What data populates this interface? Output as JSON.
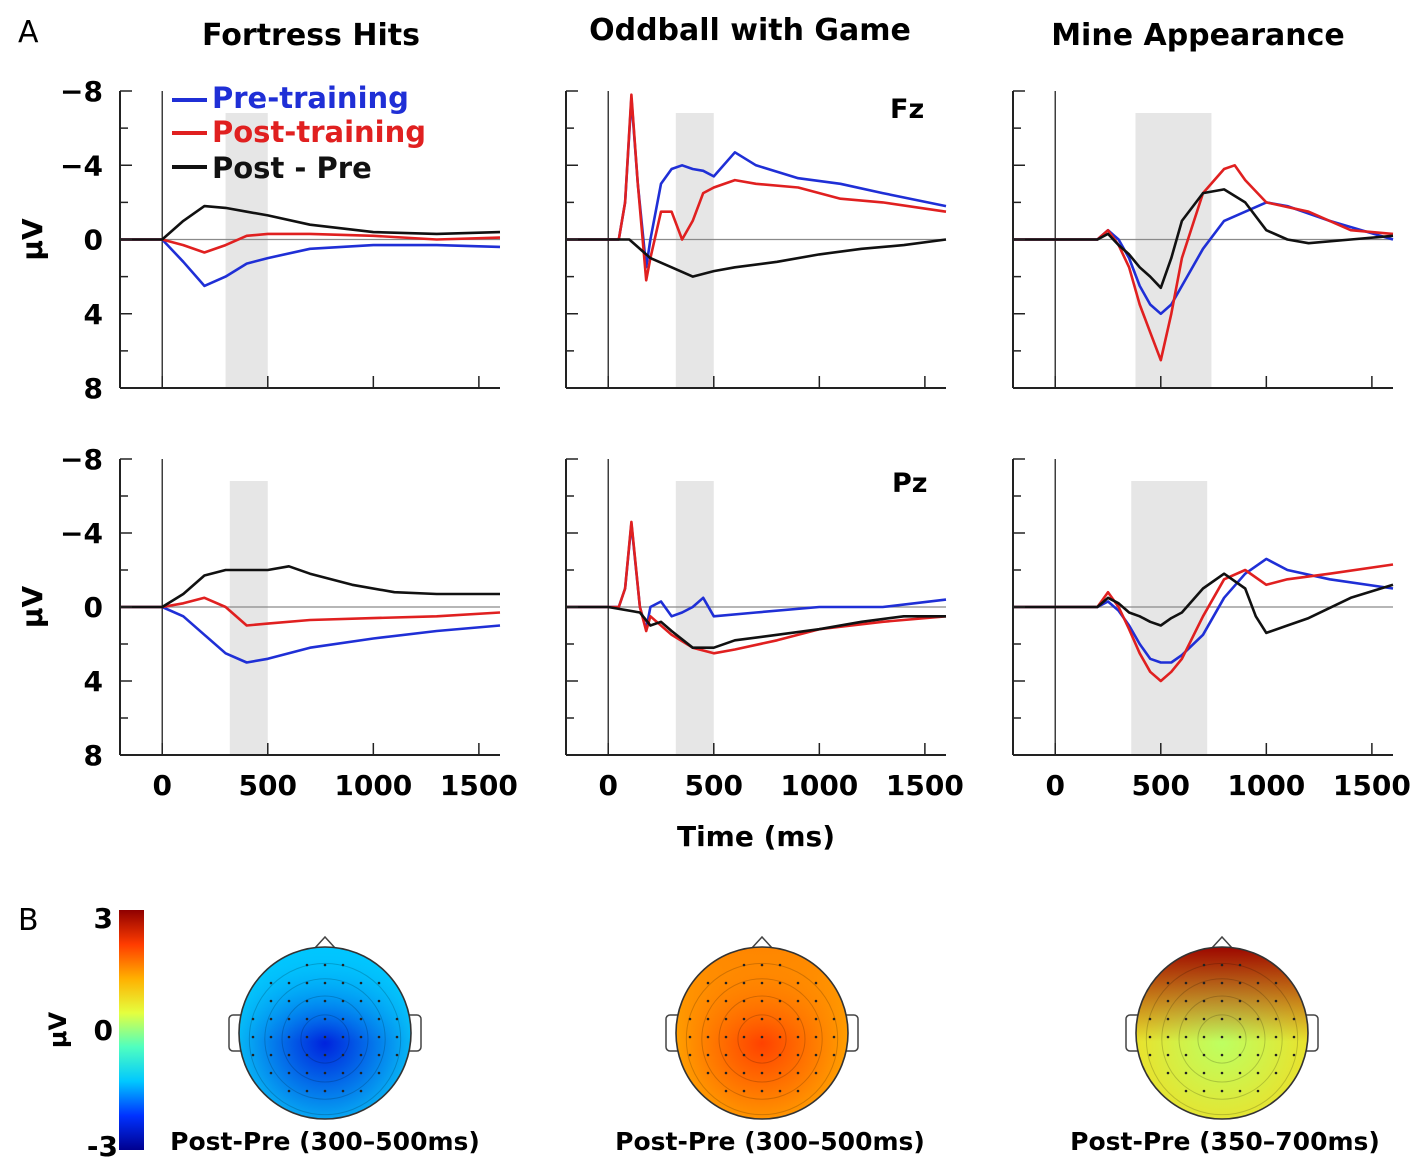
{
  "panel_letters": {
    "a": "A",
    "b": "B"
  },
  "legend": [
    {
      "key": "pre",
      "label": "Pre-training",
      "color": "#1f2fd6"
    },
    {
      "key": "post",
      "label": "Post-training",
      "color": "#e02020"
    },
    {
      "key": "diff",
      "label": "Post - Pre",
      "color": "#111111"
    }
  ],
  "channel_labels": {
    "fz": "Fz",
    "pz": "Pz"
  },
  "shade_color": "#e6e6e6",
  "chart_data": [
    {
      "type": "line",
      "id": "fortress-fz",
      "title": "Fortress Hits",
      "channel": "Fz",
      "ylabel": "μV",
      "xlabel": "",
      "xlim": [
        -200,
        1600
      ],
      "ylim": [
        8,
        -8
      ],
      "y_inverted": true,
      "xticks": [
        0,
        500,
        1000,
        1500
      ],
      "yticks": [
        -8,
        -4,
        0,
        4,
        8
      ],
      "shade": [
        300,
        500
      ],
      "grid": false,
      "series": [
        {
          "name": "Pre-training",
          "x": [
            -200,
            0,
            100,
            200,
            300,
            400,
            500,
            700,
            1000,
            1300,
            1600
          ],
          "y": [
            0,
            0,
            1.2,
            2.5,
            2,
            1.3,
            1,
            0.5,
            0.3,
            0.3,
            0.4
          ]
        },
        {
          "name": "Post-training",
          "x": [
            -200,
            0,
            100,
            200,
            300,
            400,
            500,
            700,
            1000,
            1300,
            1600
          ],
          "y": [
            0,
            0,
            0.3,
            0.7,
            0.3,
            -0.2,
            -0.3,
            -0.3,
            -0.2,
            0,
            -0.1
          ]
        },
        {
          "name": "Post - Pre",
          "x": [
            -200,
            0,
            100,
            200,
            300,
            400,
            500,
            700,
            1000,
            1300,
            1600
          ],
          "y": [
            0,
            0,
            -1,
            -1.8,
            -1.7,
            -1.5,
            -1.3,
            -0.8,
            -0.4,
            -0.3,
            -0.4
          ]
        }
      ]
    },
    {
      "type": "line",
      "id": "oddball-fz",
      "title": "Oddball with Game",
      "channel": "Fz",
      "ylabel": "",
      "xlabel": "",
      "xlim": [
        -200,
        1600
      ],
      "ylim": [
        8,
        -8
      ],
      "y_inverted": true,
      "xticks": [
        0,
        500,
        1000,
        1500
      ],
      "yticks": [
        -8,
        -4,
        0,
        4,
        8
      ],
      "shade": [
        320,
        500
      ],
      "grid": false,
      "series": [
        {
          "name": "Pre-training",
          "x": [
            -200,
            0,
            50,
            80,
            110,
            140,
            180,
            200,
            250,
            300,
            350,
            400,
            450,
            500,
            600,
            700,
            900,
            1100,
            1300,
            1600
          ],
          "y": [
            0,
            0,
            0,
            -2,
            -7.6,
            -3,
            1.5,
            0,
            -3,
            -3.8,
            -4,
            -3.8,
            -3.7,
            -3.4,
            -4.7,
            -4,
            -3.3,
            -3,
            -2.5,
            -1.8
          ]
        },
        {
          "name": "Post-training",
          "x": [
            -200,
            0,
            50,
            80,
            110,
            140,
            180,
            200,
            250,
            300,
            350,
            400,
            450,
            500,
            600,
            700,
            900,
            1100,
            1300,
            1600
          ],
          "y": [
            0,
            0,
            0,
            -2,
            -7.8,
            -3,
            2.2,
            1,
            -1.5,
            -1.5,
            0,
            -1,
            -2.5,
            -2.8,
            -3.2,
            -3,
            -2.8,
            -2.2,
            -2,
            -1.5
          ]
        },
        {
          "name": "Post - Pre",
          "x": [
            -200,
            0,
            100,
            180,
            200,
            300,
            400,
            500,
            600,
            800,
            1000,
            1200,
            1400,
            1600
          ],
          "y": [
            0,
            0,
            0,
            0.8,
            1,
            1.5,
            2,
            1.7,
            1.5,
            1.2,
            0.8,
            0.5,
            0.3,
            0
          ]
        }
      ]
    },
    {
      "type": "line",
      "id": "mine-fz",
      "title": "Mine Appearance",
      "channel": "Fz",
      "ylabel": "",
      "xlabel": "",
      "xlim": [
        -200,
        1600
      ],
      "ylim": [
        8,
        -8
      ],
      "y_inverted": true,
      "xticks": [
        0,
        500,
        1000,
        1500
      ],
      "yticks": [
        -8,
        -4,
        0,
        4,
        8
      ],
      "shade": [
        380,
        740
      ],
      "grid": false,
      "series": [
        {
          "name": "Pre-training",
          "x": [
            -200,
            0,
            200,
            250,
            300,
            350,
            400,
            450,
            500,
            550,
            600,
            700,
            800,
            900,
            1000,
            1100,
            1300,
            1600
          ],
          "y": [
            0,
            0,
            0,
            -0.5,
            0,
            1,
            2.5,
            3.5,
            4,
            3.5,
            2.5,
            0.5,
            -1,
            -1.5,
            -2,
            -1.8,
            -1,
            0
          ]
        },
        {
          "name": "Post-training",
          "x": [
            -200,
            0,
            200,
            250,
            300,
            350,
            400,
            450,
            500,
            550,
            600,
            700,
            800,
            850,
            900,
            1000,
            1200,
            1400,
            1600
          ],
          "y": [
            0,
            0,
            0,
            -0.5,
            0.3,
            1.5,
            3.5,
            5,
            6.5,
            4,
            1,
            -2.5,
            -3.8,
            -4,
            -3.2,
            -2,
            -1.5,
            -0.5,
            -0.3
          ]
        },
        {
          "name": "Post - Pre",
          "x": [
            -200,
            0,
            200,
            250,
            300,
            350,
            400,
            450,
            500,
            550,
            600,
            700,
            800,
            900,
            1000,
            1100,
            1200,
            1400,
            1600
          ],
          "y": [
            0,
            0,
            0,
            -0.3,
            0.3,
            0.8,
            1.5,
            2,
            2.6,
            1,
            -1,
            -2.5,
            -2.7,
            -2,
            -0.5,
            0,
            0.2,
            0,
            -0.2
          ]
        }
      ]
    },
    {
      "type": "line",
      "id": "fortress-pz",
      "title": "",
      "channel": "Pz",
      "ylabel": "μV",
      "xlabel": "",
      "xlim": [
        -200,
        1600
      ],
      "ylim": [
        8,
        -8
      ],
      "y_inverted": true,
      "xticks": [
        0,
        500,
        1000,
        1500
      ],
      "yticks": [
        -8,
        -4,
        0,
        4,
        8
      ],
      "shade": [
        320,
        500
      ],
      "grid": false,
      "series": [
        {
          "name": "Pre-training",
          "x": [
            -200,
            0,
            100,
            200,
            300,
            400,
            500,
            700,
            1000,
            1300,
            1600
          ],
          "y": [
            0,
            0,
            0.5,
            1.5,
            2.5,
            3,
            2.8,
            2.2,
            1.7,
            1.3,
            1
          ]
        },
        {
          "name": "Post-training",
          "x": [
            -200,
            0,
            100,
            200,
            300,
            400,
            500,
            700,
            1000,
            1300,
            1600
          ],
          "y": [
            0,
            0,
            -0.2,
            -0.5,
            0,
            1,
            0.9,
            0.7,
            0.6,
            0.5,
            0.3
          ]
        },
        {
          "name": "Post - Pre",
          "x": [
            -200,
            0,
            100,
            200,
            300,
            400,
            500,
            600,
            700,
            900,
            1100,
            1300,
            1600
          ],
          "y": [
            0,
            0,
            -0.7,
            -1.7,
            -2,
            -2,
            -2,
            -2.2,
            -1.8,
            -1.2,
            -0.8,
            -0.7,
            -0.7
          ]
        }
      ]
    },
    {
      "type": "line",
      "id": "oddball-pz",
      "title": "",
      "channel": "Pz",
      "ylabel": "",
      "xlabel": "Time (ms)",
      "xlim": [
        -200,
        1600
      ],
      "ylim": [
        8,
        -8
      ],
      "y_inverted": true,
      "xticks": [
        0,
        500,
        1000,
        1500
      ],
      "yticks": [
        -8,
        -4,
        0,
        4,
        8
      ],
      "shade": [
        320,
        500
      ],
      "grid": false,
      "series": [
        {
          "name": "Pre-training",
          "x": [
            -200,
            0,
            50,
            80,
            110,
            150,
            180,
            200,
            250,
            300,
            350,
            400,
            450,
            500,
            700,
            1000,
            1300,
            1600
          ],
          "y": [
            0,
            0,
            0,
            -1,
            -4.5,
            0,
            1.2,
            0,
            -0.3,
            0.5,
            0.3,
            0,
            -0.5,
            0.5,
            0.3,
            0,
            0,
            -0.4
          ]
        },
        {
          "name": "Post-training",
          "x": [
            -200,
            0,
            50,
            80,
            110,
            150,
            180,
            200,
            300,
            400,
            500,
            600,
            800,
            1000,
            1300,
            1600
          ],
          "y": [
            0,
            0,
            0,
            -1,
            -4.6,
            0,
            1.3,
            0.5,
            1.5,
            2.2,
            2.5,
            2.3,
            1.8,
            1.2,
            0.8,
            0.5
          ]
        },
        {
          "name": "Post - Pre",
          "x": [
            -200,
            0,
            150,
            200,
            250,
            300,
            400,
            500,
            600,
            800,
            1000,
            1200,
            1400,
            1600
          ],
          "y": [
            0,
            0,
            0.3,
            1,
            0.8,
            1.3,
            2.2,
            2.2,
            1.8,
            1.5,
            1.2,
            0.8,
            0.5,
            0.5
          ]
        }
      ]
    },
    {
      "type": "line",
      "id": "mine-pz",
      "title": "",
      "channel": "Pz",
      "ylabel": "",
      "xlabel": "",
      "xlim": [
        -200,
        1600
      ],
      "ylim": [
        8,
        -8
      ],
      "y_inverted": true,
      "xticks": [
        0,
        500,
        1000,
        1500
      ],
      "yticks": [
        -8,
        -4,
        0,
        4,
        8
      ],
      "shade": [
        360,
        720
      ],
      "grid": false,
      "series": [
        {
          "name": "Pre-training",
          "x": [
            -200,
            0,
            200,
            250,
            300,
            350,
            400,
            450,
            500,
            550,
            600,
            700,
            800,
            900,
            1000,
            1100,
            1300,
            1600
          ],
          "y": [
            0,
            0,
            0,
            -0.3,
            0.2,
            1,
            2,
            2.8,
            3,
            3,
            2.6,
            1.5,
            -0.5,
            -1.8,
            -2.6,
            -2,
            -1.5,
            -1
          ]
        },
        {
          "name": "Post-training",
          "x": [
            -200,
            0,
            200,
            250,
            300,
            350,
            400,
            450,
            500,
            550,
            600,
            700,
            800,
            900,
            1000,
            1100,
            1300,
            1600
          ],
          "y": [
            0,
            0,
            0,
            -0.8,
            0,
            1.2,
            2.5,
            3.5,
            4,
            3.5,
            2.8,
            0.5,
            -1.5,
            -2,
            -1.2,
            -1.5,
            -1.8,
            -2.3
          ]
        },
        {
          "name": "Post - Pre",
          "x": [
            -200,
            0,
            200,
            250,
            300,
            350,
            400,
            450,
            500,
            550,
            600,
            700,
            800,
            900,
            950,
            1000,
            1100,
            1200,
            1400,
            1600
          ],
          "y": [
            0,
            0,
            0,
            -0.5,
            -0.2,
            0.3,
            0.5,
            0.8,
            1,
            0.6,
            0.3,
            -1,
            -1.8,
            -1,
            0.5,
            1.4,
            1,
            0.6,
            -0.5,
            -1.2
          ]
        }
      ]
    },
    {
      "type": "heatmap",
      "id": "colorbar",
      "ylabel": "μV",
      "range": [
        -3,
        3
      ],
      "ticks": [
        3,
        0,
        -3
      ],
      "colormap": [
        "#00008f",
        "#0032ff",
        "#00c8ff",
        "#4fffc0",
        "#e5ff3f",
        "#ffb000",
        "#ff3c00",
        "#8f0000"
      ]
    },
    {
      "type": "heatmap",
      "id": "topomaps",
      "maps": [
        {
          "caption": "Post-Pre (300–500ms)",
          "window": [
            300,
            500
          ],
          "center_value": -2.4,
          "edge_value": -1.2,
          "front_value": -1.3
        },
        {
          "caption": "Post-Pre (300–500ms)",
          "window": [
            300,
            500
          ],
          "center_value": 2.1,
          "edge_value": 1.3,
          "front_value": 1.6
        },
        {
          "caption": "Post-Pre (350–700ms)",
          "window": [
            350,
            700
          ],
          "center_value": 0.2,
          "edge_value": 0.8,
          "front_value": 2.9
        }
      ]
    }
  ]
}
